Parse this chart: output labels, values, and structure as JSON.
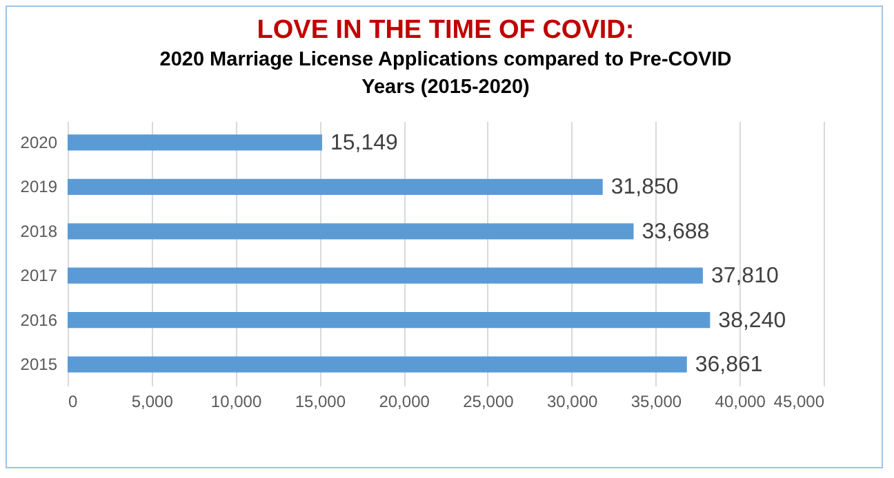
{
  "chart_data": {
    "type": "bar",
    "orientation": "horizontal",
    "title": "LOVE IN THE TIME OF COVID:",
    "subtitle": "2020 Marriage License Applications compared to Pre-COVID Years (2015-2020)",
    "categories": [
      "2020",
      "2019",
      "2018",
      "2017",
      "2016",
      "2015"
    ],
    "values": [
      15149,
      31850,
      33688,
      37810,
      38240,
      36861
    ],
    "value_labels": [
      "15,149",
      "31,850",
      "33,688",
      "37,810",
      "38,240",
      "36,861"
    ],
    "color": "#5b9bd5",
    "xlim": [
      0,
      45000
    ],
    "xticks": [
      0,
      {
        "value": 5000,
        "label": "5,000"
      },
      {
        "value": 10000,
        "label": "10,000"
      },
      {
        "value": 15000,
        "label": "15,000"
      },
      {
        "value": 20000,
        "label": "20,000"
      },
      {
        "value": 25000,
        "label": "25,000"
      },
      {
        "value": 30000,
        "label": "30,000"
      },
      {
        "value": 35000,
        "label": "35,000"
      },
      {
        "value": 40000,
        "label": "40,000"
      },
      {
        "value": 45000,
        "label": "45,000"
      }
    ],
    "grid": "x"
  }
}
